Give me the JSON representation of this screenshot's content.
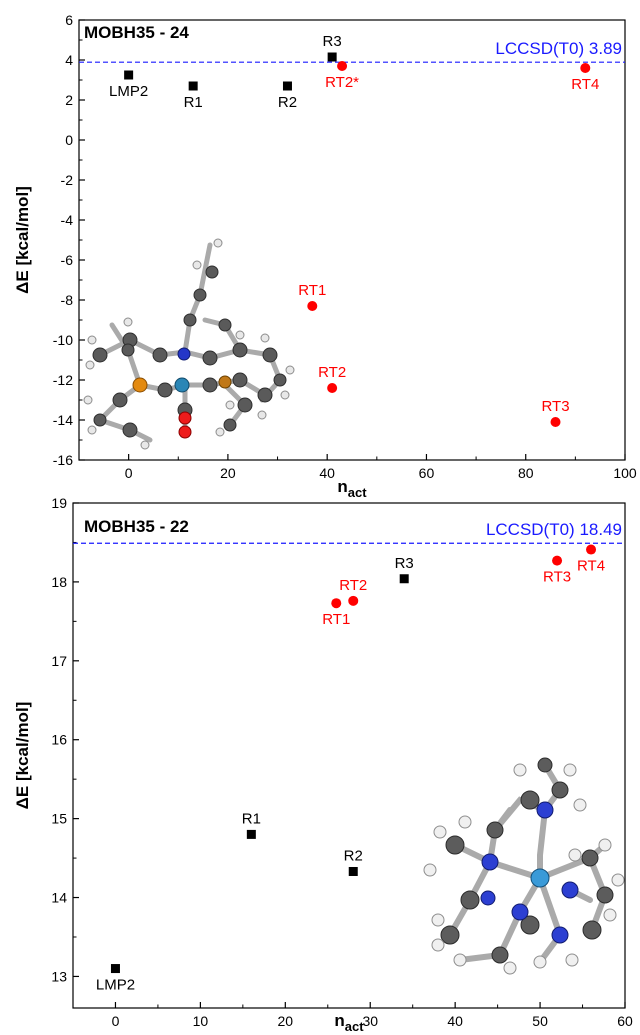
{
  "chart_data": [
    {
      "type": "scatter",
      "title": "MOBH35 - 24",
      "xlabel": "n",
      "xlabel_sub": "act",
      "ylabel": "ΔE [kcal/mol]",
      "xlim": [
        -10,
        100
      ],
      "ylim": [
        -16,
        6
      ],
      "x_ticks": [
        0,
        20,
        40,
        60,
        80,
        100
      ],
      "y_ticks": [
        -16,
        -14,
        -12,
        -10,
        -8,
        -6,
        -4,
        -2,
        0,
        2,
        4,
        6
      ],
      "reference": {
        "label": "LCCSD(T0) 3.89",
        "value": 3.89,
        "color": "#1a1aff"
      },
      "series": [
        {
          "marker": "square",
          "color": "#000000",
          "points": [
            {
              "label": "LMP2",
              "x": 0,
              "y": 3.25,
              "label_pos": "below"
            },
            {
              "label": "R1",
              "x": 13,
              "y": 2.7,
              "label_pos": "below"
            },
            {
              "label": "R2",
              "x": 32,
              "y": 2.7,
              "label_pos": "below"
            },
            {
              "label": "R3",
              "x": 41,
              "y": 4.15,
              "label_pos": "above"
            }
          ]
        },
        {
          "marker": "circle",
          "color": "#ff0000",
          "points": [
            {
              "label": "RT2*",
              "x": 43,
              "y": 3.7,
              "label_pos": "below"
            },
            {
              "label": "RT4",
              "x": 92,
              "y": 3.6,
              "label_pos": "below"
            },
            {
              "label": "RT1",
              "x": 37,
              "y": -8.3,
              "label_pos": "above"
            },
            {
              "label": "RT2",
              "x": 41,
              "y": -12.4,
              "label_pos": "above"
            },
            {
              "label": "RT3",
              "x": 86,
              "y": -14.1,
              "label_pos": "above"
            }
          ]
        }
      ],
      "inset": "molecule-structure-24"
    },
    {
      "type": "scatter",
      "title": "MOBH35 - 22",
      "xlabel": "n",
      "xlabel_sub": "act",
      "ylabel": "ΔE [kcal/mol]",
      "xlim": [
        -5,
        60
      ],
      "ylim": [
        12.6,
        19
      ],
      "x_ticks": [
        0,
        10,
        20,
        30,
        40,
        50,
        60
      ],
      "y_ticks": [
        13,
        14,
        15,
        16,
        17,
        18,
        19
      ],
      "reference": {
        "label": "LCCSD(T0) 18.49",
        "value": 18.49,
        "color": "#1a1aff"
      },
      "series": [
        {
          "marker": "square",
          "color": "#000000",
          "points": [
            {
              "label": "LMP2",
              "x": 0,
              "y": 13.1,
              "label_pos": "below"
            },
            {
              "label": "R1",
              "x": 16,
              "y": 14.8,
              "label_pos": "above"
            },
            {
              "label": "R2",
              "x": 28,
              "y": 14.33,
              "label_pos": "above"
            },
            {
              "label": "R3",
              "x": 34,
              "y": 18.04,
              "label_pos": "above"
            }
          ]
        },
        {
          "marker": "circle",
          "color": "#ff0000",
          "points": [
            {
              "label": "RT1",
              "x": 26,
              "y": 17.73,
              "label_pos": "below"
            },
            {
              "label": "RT2",
              "x": 28,
              "y": 17.76,
              "label_pos": "above"
            },
            {
              "label": "RT3",
              "x": 52,
              "y": 18.27,
              "label_pos": "below"
            },
            {
              "label": "RT4",
              "x": 56,
              "y": 18.41,
              "label_pos": "below"
            }
          ]
        }
      ],
      "inset": "molecule-structure-22"
    }
  ]
}
